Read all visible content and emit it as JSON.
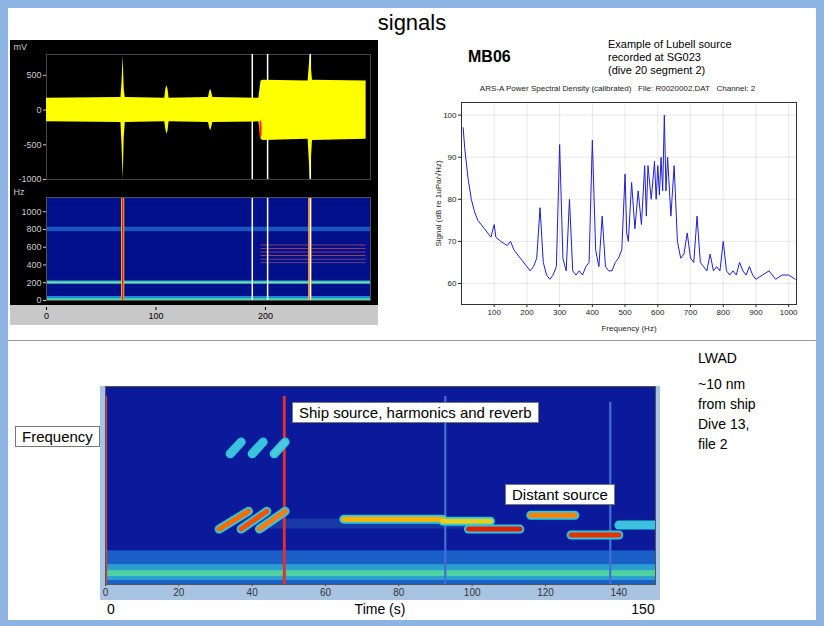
{
  "title": "signals",
  "chart_data": [
    {
      "type": "area",
      "ylabel": "mV",
      "xlim": [
        0,
        296
      ],
      "ylim": [
        -1000,
        800
      ],
      "yticks": [
        -1000,
        -500,
        0,
        500
      ],
      "tick_labels": "y",
      "grid": false,
      "vlines": [
        188,
        202,
        241
      ],
      "series": [
        {
          "color": "#ffff00",
          "x": [
            0,
            68,
            69,
            70,
            71,
            72,
            108,
            109,
            110,
            111,
            112,
            148,
            149,
            150,
            151,
            152,
            194,
            196,
            198,
            239,
            240,
            241,
            242,
            243,
            292
          ],
          "upper": [
            170,
            180,
            400,
            780,
            300,
            180,
            170,
            300,
            350,
            300,
            170,
            180,
            260,
            300,
            250,
            180,
            170,
            420,
            430,
            420,
            620,
            800,
            600,
            430,
            420
          ],
          "lower": [
            -170,
            -180,
            -500,
            -1000,
            -400,
            -180,
            -170,
            -280,
            -350,
            -300,
            -170,
            -180,
            -250,
            -300,
            -240,
            -180,
            -170,
            -420,
            -440,
            -420,
            -700,
            -1000,
            -700,
            -440,
            -420
          ]
        },
        {
          "color": "#ff3020",
          "x": [
            195,
            196,
            197
          ],
          "upper": [
            -180,
            -150,
            -200
          ],
          "lower": [
            -380,
            -420,
            -360
          ]
        }
      ]
    },
    {
      "type": "spectrogram",
      "ylabel": "Hz",
      "xlim": [
        0,
        296
      ],
      "xticks": [
        0,
        100,
        200
      ],
      "ylim": [
        0,
        1160
      ],
      "yticks": [
        0,
        200,
        400,
        600,
        800,
        1000
      ],
      "grid": false,
      "vlines": [
        188,
        202,
        241
      ],
      "cells": [
        {
          "x1": 0,
          "x2": 296,
          "y1": 0,
          "y2": 45,
          "color": "#1e8ad6"
        },
        {
          "x1": 0,
          "x2": 296,
          "y1": 0,
          "y2": 20,
          "color": "#4fd6a8"
        },
        {
          "x1": 0,
          "x2": 296,
          "y1": 180,
          "y2": 220,
          "color": "#2a9ed2"
        },
        {
          "x1": 0,
          "x2": 296,
          "y1": 192,
          "y2": 208,
          "color": "#7ee08a"
        },
        {
          "x1": 0,
          "x2": 296,
          "y1": 775,
          "y2": 825,
          "color": "#1a56c0"
        },
        {
          "x1": 196,
          "x2": 292,
          "y1": 616,
          "y2": 624,
          "color": "#c8505a"
        },
        {
          "x1": 196,
          "x2": 292,
          "y1": 576,
          "y2": 584,
          "color": "#d05050"
        },
        {
          "x1": 196,
          "x2": 292,
          "y1": 536,
          "y2": 544,
          "color": "#a84c80"
        },
        {
          "x1": 196,
          "x2": 292,
          "y1": 496,
          "y2": 504,
          "color": "#d85a48"
        },
        {
          "x1": 196,
          "x2": 292,
          "y1": 456,
          "y2": 464,
          "color": "#b85068"
        },
        {
          "x1": 196,
          "x2": 292,
          "y1": 416,
          "y2": 424,
          "color": "#9a4c8c"
        },
        {
          "x1": 68.5,
          "x2": 71.5,
          "y1": 0,
          "y2": 1160,
          "color": "#f0c020"
        },
        {
          "x1": 69.3,
          "x2": 70.7,
          "y1": 0,
          "y2": 1160,
          "color": "#e02020"
        },
        {
          "x1": 239.5,
          "x2": 242.5,
          "y1": 0,
          "y2": 1160,
          "color": "#f0c020"
        },
        {
          "x1": 240.3,
          "x2": 241.7,
          "y1": 0,
          "y2": 1160,
          "color": "#e02020"
        }
      ]
    },
    {
      "type": "line",
      "title": "ARS-A Power Spectral Density (calibrated)   File: R0020002.DAT   Channel: 2",
      "annotations": [
        "MB06",
        [
          "Example of Lubell source",
          "recorded at SG023",
          "(dive 20 segment 2)"
        ]
      ],
      "xlabel": "Frequency (Hz)",
      "ylabel": "Signal (dB re 1uPa/√Hz)",
      "xlim": [
        0,
        1024
      ],
      "ylim": [
        55,
        103
      ],
      "xticks": [
        100,
        200,
        300,
        400,
        500,
        600,
        700,
        800,
        900,
        1000
      ],
      "yticks": [
        60,
        70,
        80,
        90,
        100
      ],
      "grid": true,
      "series": [
        {
          "color": "#1f1fd0",
          "x": [
            5,
            10,
            20,
            30,
            40,
            50,
            60,
            70,
            80,
            90,
            100,
            105,
            120,
            140,
            150,
            160,
            180,
            200,
            210,
            220,
            230,
            240,
            250,
            260,
            270,
            280,
            290,
            300,
            310,
            320,
            330,
            340,
            350,
            360,
            370,
            380,
            390,
            400,
            410,
            420,
            430,
            440,
            450,
            460,
            470,
            480,
            490,
            500,
            505,
            510,
            520,
            530,
            540,
            550,
            560,
            565,
            570,
            580,
            590,
            595,
            600,
            605,
            610,
            615,
            620,
            625,
            630,
            640,
            650,
            660,
            670,
            680,
            690,
            700,
            710,
            720,
            730,
            740,
            750,
            760,
            770,
            780,
            790,
            800,
            810,
            820,
            830,
            840,
            850,
            860,
            870,
            880,
            890,
            900,
            920,
            940,
            960,
            980,
            1000,
            1020
          ],
          "values": [
            97,
            92,
            85,
            80,
            77,
            75,
            74,
            73,
            72,
            71,
            74,
            71,
            70,
            69,
            70,
            68,
            66,
            64,
            63,
            64,
            66,
            78,
            65,
            62,
            61,
            62,
            64,
            93,
            66,
            63,
            80,
            63,
            62,
            63,
            62,
            64,
            65,
            94,
            68,
            64,
            76,
            64,
            63,
            63,
            65,
            66,
            68,
            86,
            72,
            70,
            84,
            73,
            82,
            74,
            88,
            76,
            88,
            80,
            89,
            80,
            88,
            81,
            90,
            82,
            100,
            82,
            90,
            76,
            88,
            70,
            66,
            67,
            72,
            66,
            65,
            76,
            65,
            64,
            63,
            67,
            63,
            64,
            63,
            70,
            63,
            62,
            63,
            62,
            65,
            63,
            62,
            64,
            62,
            61,
            62,
            63,
            61,
            62,
            62,
            61
          ]
        }
      ]
    },
    {
      "type": "spectrogram",
      "ylabel": "Frequency",
      "xlabel": "Time (s)",
      "annotations": [
        "Ship source, harmonics and reverb",
        "Distant source",
        "LWAD",
        [
          "~10 nm",
          "from ship",
          "Dive 13,",
          "file 2"
        ]
      ],
      "xlim": [
        0,
        150
      ],
      "xticks": [
        0,
        20,
        40,
        60,
        80,
        100,
        120,
        140
      ],
      "ylim": [
        0,
        100
      ],
      "tick_labels": "x",
      "grid": false,
      "cells": [
        {
          "x1": 0,
          "x2": 150,
          "y1": 0,
          "y2": 17,
          "color": "#1a5ec8"
        },
        {
          "x1": 0,
          "x2": 150,
          "y1": 2,
          "y2": 10,
          "color": "#2aa0d0"
        },
        {
          "x1": 0,
          "x2": 150,
          "y1": 4,
          "y2": 7,
          "color": "#50d0a0"
        },
        {
          "x1": 45,
          "x2": 100,
          "y1": 28,
          "y2": 33,
          "color": "#1838a8"
        },
        {
          "x1": 0,
          "x2": 0.6,
          "y1": 0,
          "y2": 95,
          "color": "#d04040"
        },
        {
          "x1": 48.5,
          "x2": 49.3,
          "y1": 0,
          "y2": 95,
          "color": "#e03030"
        },
        {
          "x1": 92.5,
          "x2": 93.1,
          "y1": 0,
          "y2": 95,
          "color": "#4070d0"
        },
        {
          "x1": 137.5,
          "x2": 138.1,
          "y1": 0,
          "y2": 92,
          "color": "#4070d0"
        }
      ],
      "streaks": [
        {
          "x1": 31,
          "x2": 39,
          "y1": 28,
          "y2": 37,
          "color": "#ff6a00"
        },
        {
          "x1": 37,
          "x2": 44,
          "y1": 28,
          "y2": 37,
          "color": "#ff5000"
        },
        {
          "x1": 42,
          "x2": 49,
          "y1": 28,
          "y2": 37,
          "color": "#ff7a10"
        },
        {
          "x1": 34,
          "x2": 37,
          "y1": 66,
          "y2": 72,
          "color": "#40c0e0"
        },
        {
          "x1": 40,
          "x2": 43,
          "y1": 66,
          "y2": 72,
          "color": "#40c0e0"
        },
        {
          "x1": 46,
          "x2": 49,
          "y1": 66,
          "y2": 72,
          "color": "#50c8e0"
        },
        {
          "x1": 65,
          "x2": 92,
          "y1": 33,
          "y2": 33,
          "color": "#ffb000"
        },
        {
          "x1": 92,
          "x2": 105,
          "y1": 32,
          "y2": 32,
          "color": "#e8d020"
        },
        {
          "x1": 99,
          "x2": 113,
          "y1": 28,
          "y2": 28,
          "color": "#e02000"
        },
        {
          "x1": 116,
          "x2": 128,
          "y1": 35,
          "y2": 35,
          "color": "#ff8000"
        },
        {
          "x1": 127,
          "x2": 140,
          "y1": 25,
          "y2": 25,
          "color": "#e83000"
        },
        {
          "x1": 140,
          "x2": 150,
          "y1": 30,
          "y2": 30,
          "color": "#40c0e0"
        }
      ]
    }
  ]
}
